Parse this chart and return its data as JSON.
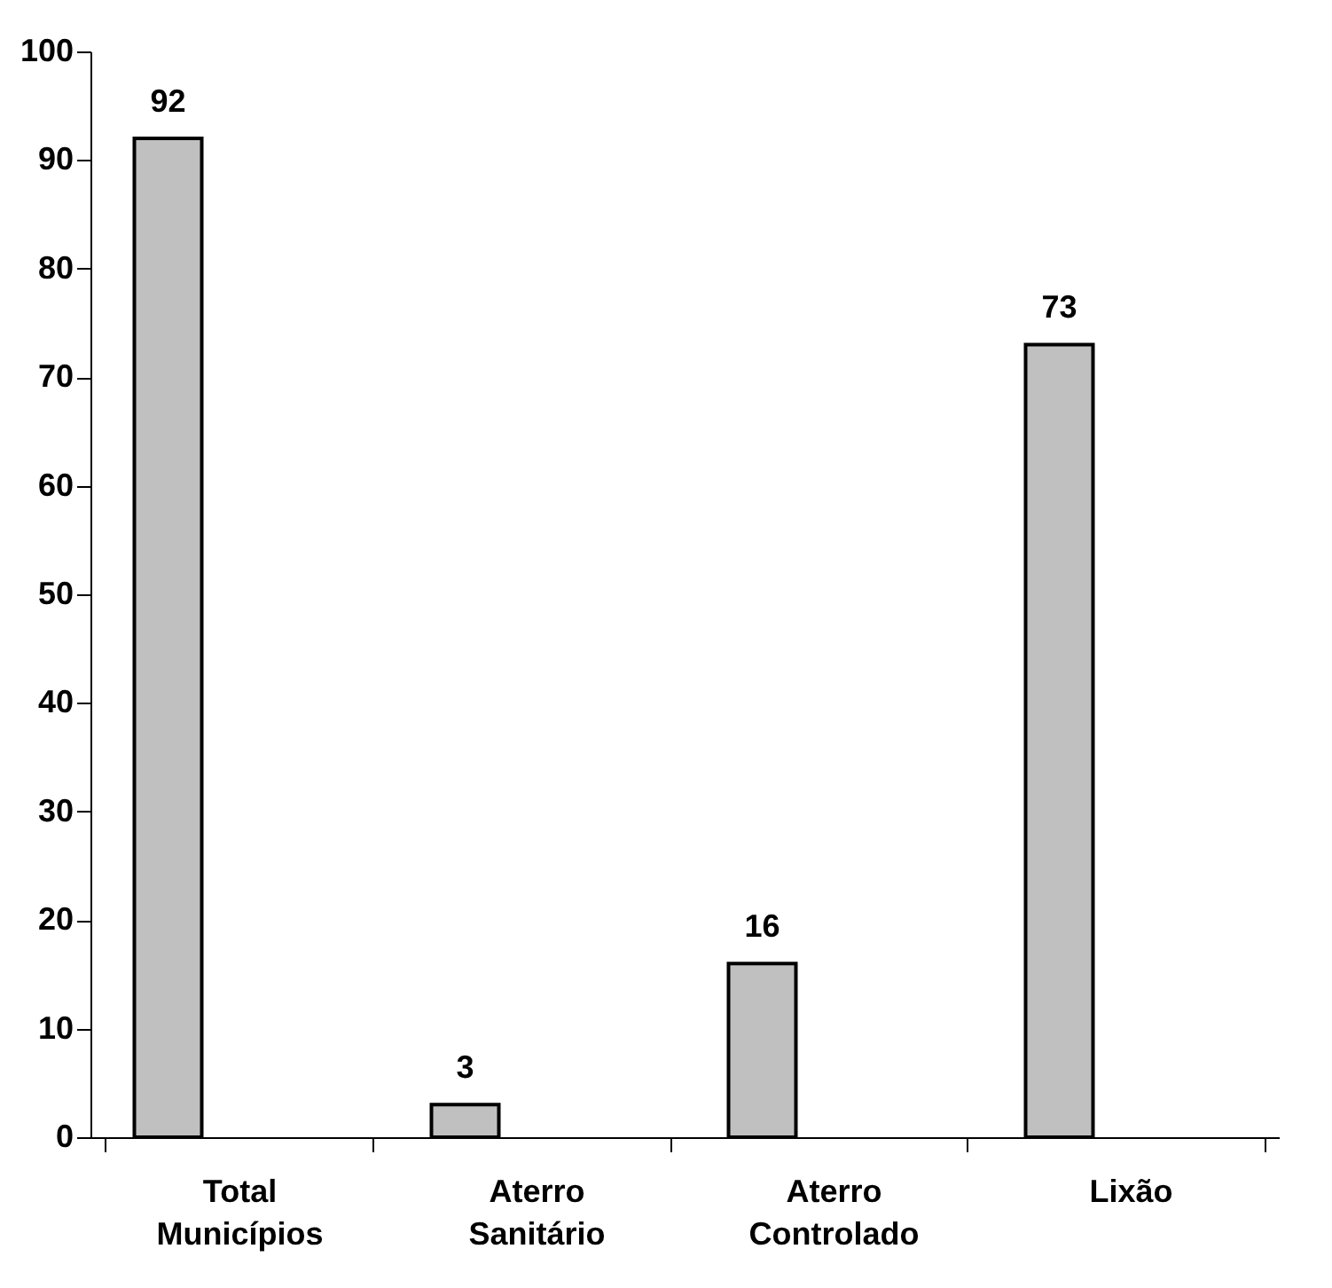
{
  "chart_data": {
    "type": "bar",
    "categories": [
      "Total Municípios",
      "Aterro Sanitário",
      "Aterro Controlado",
      "Lixão"
    ],
    "values": [
      92,
      3,
      16,
      73
    ],
    "color": "#c0c0c0",
    "ylim": [
      0,
      100
    ],
    "yticks": [
      0,
      10,
      20,
      30,
      40,
      50,
      60,
      70,
      80,
      90,
      100
    ],
    "grid": false,
    "data_labels": true
  }
}
